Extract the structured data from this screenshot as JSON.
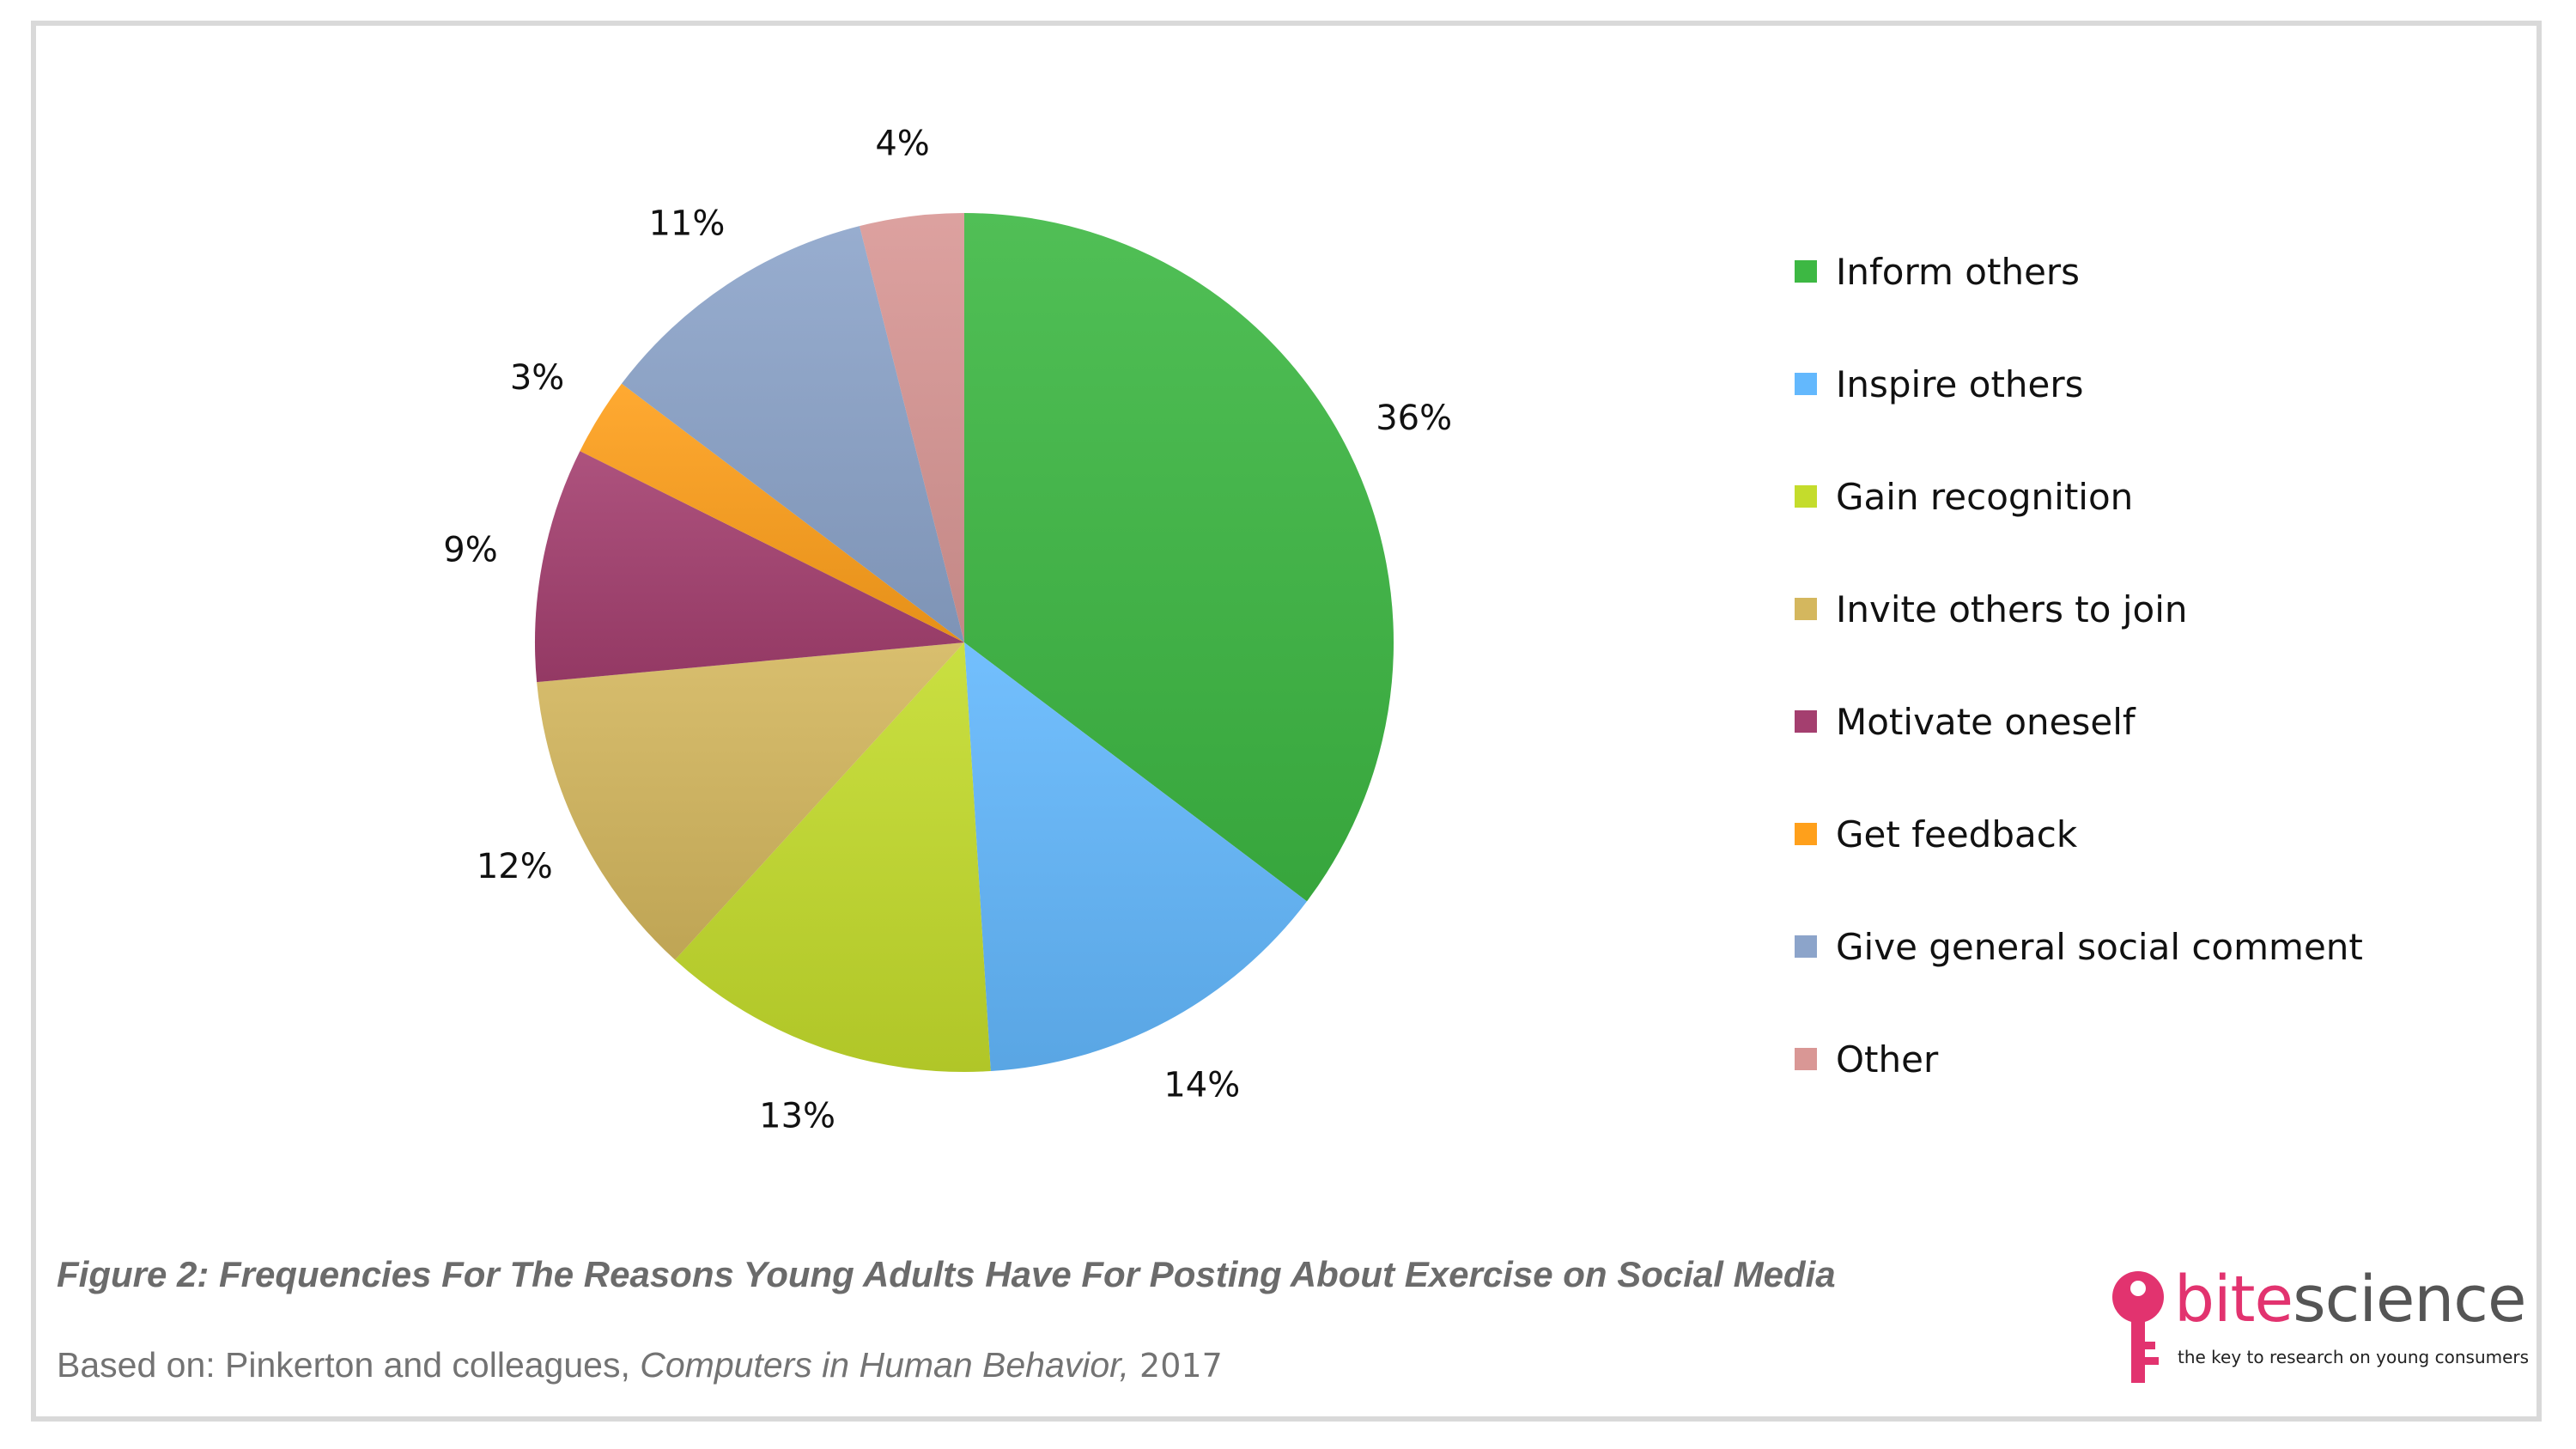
{
  "chart_data": {
    "type": "pie",
    "title": "",
    "categories": [
      "Inform others",
      "Inspire others",
      "Gain recognition",
      "Invite others to join",
      "Motivate oneself",
      "Get feedback",
      "Give general social comment",
      "Other"
    ],
    "values": [
      36,
      14,
      13,
      12,
      9,
      3,
      11,
      4
    ],
    "labels": [
      "36%",
      "14%",
      "13%",
      "12%",
      "9%",
      "3%",
      "11%",
      "4%"
    ],
    "colors": [
      "#3db843",
      "#63b8fd",
      "#c4dc2c",
      "#d4b75e",
      "#a43f6f",
      "#ffa01b",
      "#8ca4ca",
      "#d99795"
    ],
    "start_angle_deg": 0,
    "direction": "clockwise",
    "legend_position": "right",
    "legend": [
      "Inform others",
      "Inspire others",
      "Gain recognition",
      "Invite others to join",
      "Motivate oneself",
      "Get feedback",
      "Give general social comment",
      "Other"
    ]
  },
  "caption": {
    "figure": "Figure 2: Frequencies For The Reasons Young Adults Have For Posting About Exercise on Social Media",
    "source_prefix": "Based on: Pinkerton and colleagues, ",
    "source_journal": "Computers in Human Behavior,",
    "source_year": " 2017"
  },
  "logo": {
    "part1": "bite",
    "part2": "science",
    "tagline": "the key to research on young consumers",
    "icon": "key-icon",
    "brand_color": "#e2336f"
  }
}
